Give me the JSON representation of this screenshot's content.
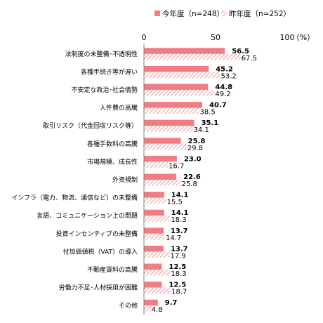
{
  "chart_data": {
    "type": "bar",
    "orientation": "horizontal",
    "categories": [
      "法制度の未整備･不透明性",
      "各種手続き等が遅い",
      "不安定な政治･社会情勢",
      "人件費の高騰",
      "取引リスク（代金回収リスク等）",
      "各種手数料の高騰",
      "市場規模、成長性",
      "外资規制",
      "インフラ（電力、物流、通信など）の未整備",
      "言語、コミュニケーション上の問題",
      "投資インセンティブの未整備",
      "付加価値税（VAT）の導入",
      "不動産賃料の高騰",
      "労働力不足･人材採用が困難",
      "その他"
    ],
    "series": [
      {
        "name": "今年度（n=248）",
        "values": [
          56.5,
          45.2,
          44.8,
          40.7,
          35.1,
          25.8,
          23.0,
          22.6,
          14.1,
          14.1,
          13.7,
          13.7,
          12.5,
          12.5,
          9.7
        ]
      },
      {
        "name": "昨年度（n=252）",
        "values": [
          67.5,
          53.2,
          49.2,
          38.5,
          34.1,
          29.8,
          16.7,
          25.8,
          15.5,
          18.3,
          14.7,
          17.9,
          18.3,
          18.7,
          4.8
        ]
      }
    ],
    "value_labels": {
      "current": [
        "56.5",
        "45.2",
        "44.8",
        "40.7",
        "35.1",
        "25.8",
        "23.0",
        "22.6",
        "14.1",
        "14.1",
        "13.7",
        "13.7",
        "12.5",
        "12.5",
        "9.7"
      ],
      "previous": [
        "67.5",
        "53.2",
        "49.2",
        "38.5",
        "34.1",
        "29.8",
        "16.7",
        "25.8",
        "15.5",
        "18.3",
        "14.7",
        "17.9",
        "18.3",
        "18.7",
        "4.8"
      ]
    },
    "xticks": [
      "0",
      "50",
      "100"
    ],
    "xlim": [
      0,
      100
    ],
    "unit_label": "（%）",
    "legend_position": "top",
    "grid": false,
    "colors": {
      "current": "#f27c84",
      "previous": "#f27c84"
    },
    "previous_pattern": "diagonal-hatch"
  }
}
